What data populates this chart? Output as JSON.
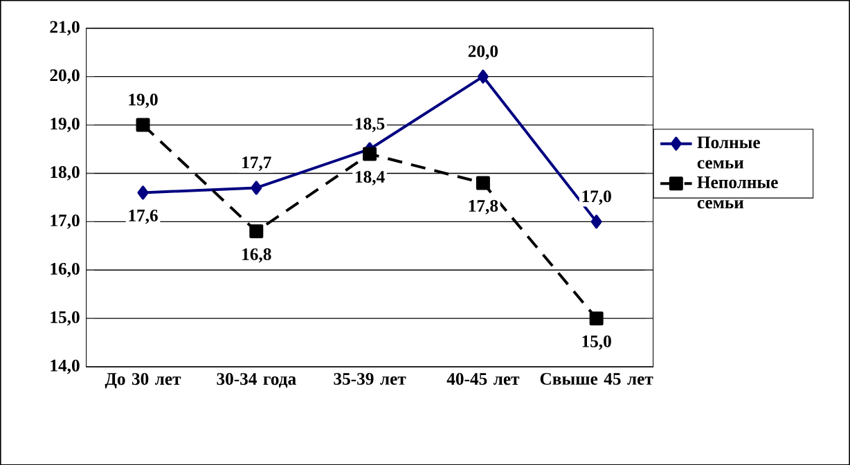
{
  "chart_data": {
    "type": "line",
    "categories": [
      "До 30 лет",
      "30-34 года",
      "35-39 лет",
      "40-45 лет",
      "Свыше 45 лет"
    ],
    "series": [
      {
        "name": "Полные семьи",
        "color": "#000080",
        "marker": "diamond",
        "line_style": "solid",
        "values": [
          17.6,
          17.7,
          18.5,
          20.0,
          17.0
        ],
        "value_labels": [
          "17,6",
          "17,7",
          "18,5",
          "20,0",
          "17,0"
        ]
      },
      {
        "name": "Неполные семьи",
        "color": "#000000",
        "marker": "square",
        "line_style": "dashed",
        "values": [
          19.0,
          16.8,
          18.4,
          17.8,
          15.0
        ],
        "value_labels": [
          "19,0",
          "16,8",
          "18,4",
          "17,8",
          "15,0"
        ]
      }
    ],
    "ylim": [
      14,
      21
    ],
    "yticks": [
      {
        "value": 14,
        "label": "14,0"
      },
      {
        "value": 15,
        "label": "15,0"
      },
      {
        "value": 16,
        "label": "16,0"
      },
      {
        "value": 17,
        "label": "17,0"
      },
      {
        "value": 18,
        "label": "18,0"
      },
      {
        "value": 19,
        "label": "19,0"
      },
      {
        "value": 20,
        "label": "20,0"
      },
      {
        "value": 21,
        "label": "21,0"
      }
    ],
    "grid": "y",
    "legend": "right"
  }
}
